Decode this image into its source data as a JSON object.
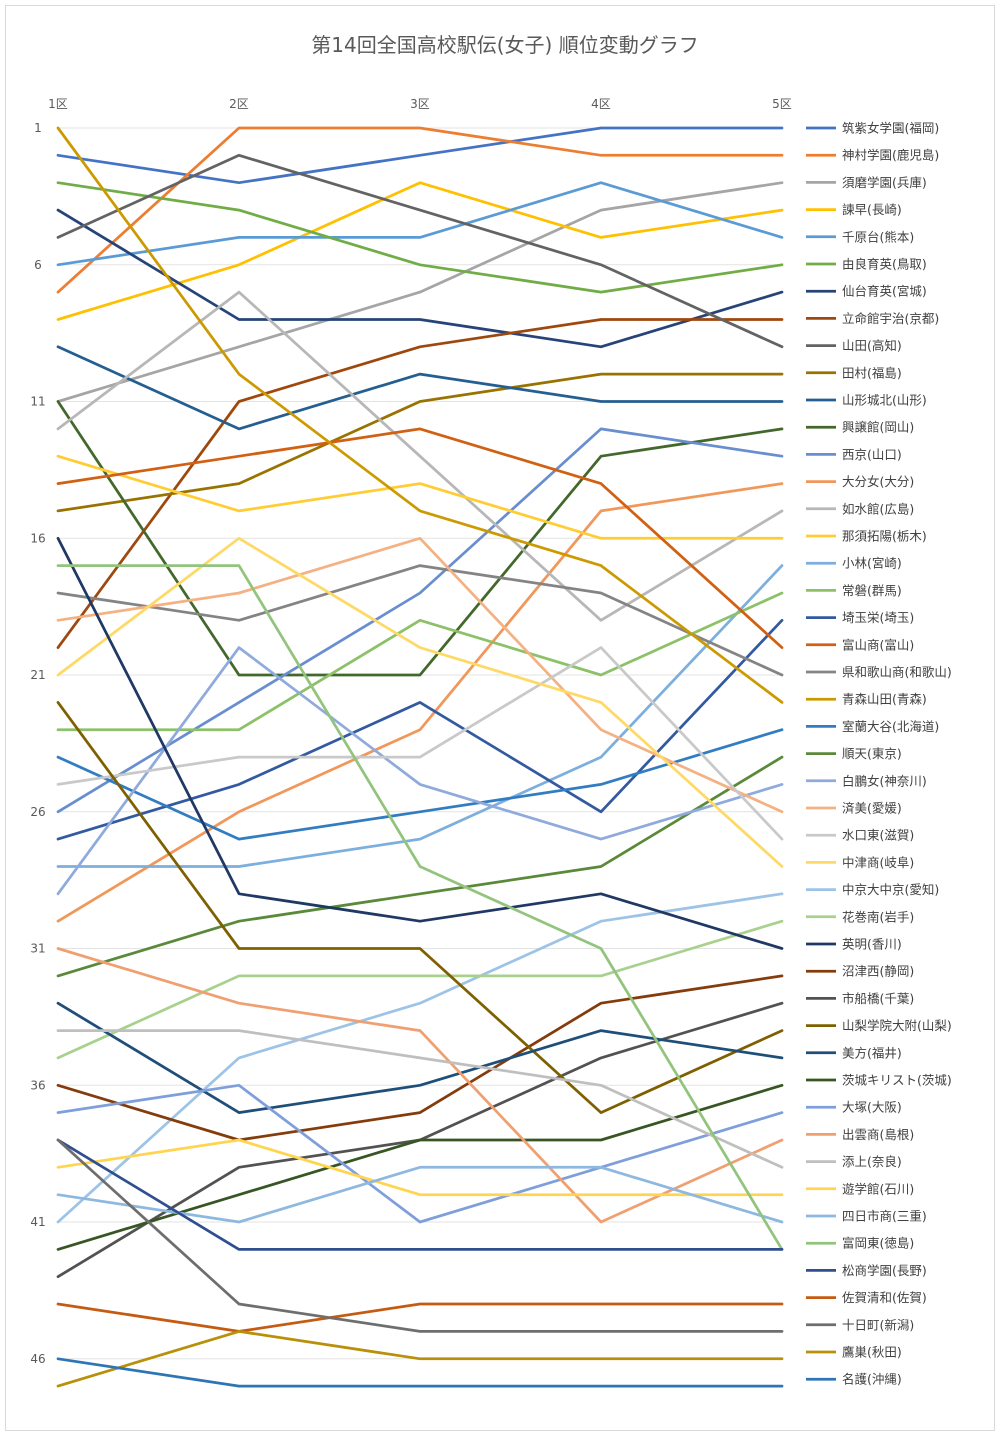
{
  "chart_data": {
    "type": "line",
    "title": "第14回全国高校駅伝(女子) 順位変動グラフ",
    "x": [
      "1区",
      "2区",
      "3区",
      "4区",
      "5区"
    ],
    "y_ticks": [
      1,
      6,
      11,
      16,
      21,
      26,
      31,
      36,
      41,
      46
    ],
    "ylim": [
      1,
      47
    ],
    "y_reversed": true,
    "grid": "horizontal",
    "legend_position": "right",
    "series": [
      {
        "name": "筑紫女学園(福岡)",
        "color": "#4472C4",
        "values": [
          2,
          3,
          2,
          1,
          1
        ]
      },
      {
        "name": "神村学園(鹿児島)",
        "color": "#ED7D31",
        "values": [
          7,
          1,
          1,
          2,
          2
        ]
      },
      {
        "name": "須磨学園(兵庫)",
        "color": "#A5A5A5",
        "values": [
          11,
          9,
          7,
          4,
          3
        ]
      },
      {
        "name": "諫早(長崎)",
        "color": "#FFC000",
        "values": [
          8,
          6,
          3,
          5,
          4
        ]
      },
      {
        "name": "千原台(熊本)",
        "color": "#5B9BD5",
        "values": [
          6,
          5,
          5,
          3,
          5
        ]
      },
      {
        "name": "由良育英(鳥取)",
        "color": "#70AD47",
        "values": [
          3,
          4,
          6,
          7,
          6
        ]
      },
      {
        "name": "仙台育英(宮城)",
        "color": "#264478",
        "values": [
          4,
          8,
          8,
          9,
          7
        ]
      },
      {
        "name": "立命館宇治(京都)",
        "color": "#9E480E",
        "values": [
          20,
          11,
          9,
          8,
          8
        ]
      },
      {
        "name": "山田(高知)",
        "color": "#636363",
        "values": [
          5,
          2,
          4,
          6,
          9
        ]
      },
      {
        "name": "田村(福島)",
        "color": "#997300",
        "values": [
          15,
          14,
          11,
          10,
          10
        ]
      },
      {
        "name": "山形城北(山形)",
        "color": "#255E91",
        "values": [
          9,
          12,
          10,
          11,
          11
        ]
      },
      {
        "name": "興譲館(岡山)",
        "color": "#43682B",
        "values": [
          11,
          21,
          21,
          13,
          12
        ]
      },
      {
        "name": "西京(山口)",
        "color": "#698ED0",
        "values": [
          26,
          22,
          18,
          12,
          13
        ]
      },
      {
        "name": "大分女(大分)",
        "color": "#F1975A",
        "values": [
          30,
          26,
          23,
          15,
          14
        ]
      },
      {
        "name": "如水館(広島)",
        "color": "#B7B7B7",
        "values": [
          12,
          7,
          13,
          19,
          15
        ]
      },
      {
        "name": "那須拓陽(栃木)",
        "color": "#FFCD33",
        "values": [
          13,
          15,
          14,
          16,
          16
        ]
      },
      {
        "name": "小林(宮崎)",
        "color": "#7CAFDD",
        "values": [
          28,
          28,
          27,
          24,
          17
        ]
      },
      {
        "name": "常磐(群馬)",
        "color": "#8CC168",
        "values": [
          23,
          23,
          19,
          21,
          18
        ]
      },
      {
        "name": "埼玉栄(埼玉)",
        "color": "#335AA1",
        "values": [
          27,
          25,
          22,
          26,
          19
        ]
      },
      {
        "name": "富山商(富山)",
        "color": "#D26012",
        "values": [
          14,
          13,
          12,
          14,
          20
        ]
      },
      {
        "name": "県和歌山商(和歌山)",
        "color": "#848484",
        "values": [
          18,
          19,
          17,
          18,
          21
        ]
      },
      {
        "name": "青森山田(青森)",
        "color": "#CC9A00",
        "values": [
          1,
          10,
          15,
          17,
          22
        ]
      },
      {
        "name": "室蘭大谷(北海道)",
        "color": "#327DC2",
        "values": [
          24,
          27,
          26,
          25,
          23
        ]
      },
      {
        "name": "順天(東京)",
        "color": "#5A8A39",
        "values": [
          32,
          30,
          29,
          28,
          24
        ]
      },
      {
        "name": "白鵬女(神奈川)",
        "color": "#8FAADC",
        "values": [
          29,
          20,
          25,
          27,
          25
        ]
      },
      {
        "name": "済美(愛媛)",
        "color": "#F4B183",
        "values": [
          19,
          18,
          16,
          23,
          26
        ]
      },
      {
        "name": "水口東(滋賀)",
        "color": "#C9C9C9",
        "values": [
          25,
          24,
          24,
          20,
          27
        ]
      },
      {
        "name": "中津商(岐阜)",
        "color": "#FFD966",
        "values": [
          21,
          16,
          20,
          22,
          28
        ]
      },
      {
        "name": "中京大中京(愛知)",
        "color": "#9DC3E6",
        "values": [
          41,
          35,
          33,
          30,
          29
        ]
      },
      {
        "name": "花巻南(岩手)",
        "color": "#A9D18E",
        "values": [
          35,
          32,
          32,
          32,
          30
        ]
      },
      {
        "name": "英明(香川)",
        "color": "#203864",
        "values": [
          16,
          29,
          30,
          29,
          31
        ]
      },
      {
        "name": "沼津西(静岡)",
        "color": "#843C0C",
        "values": [
          36,
          38,
          37,
          33,
          32
        ]
      },
      {
        "name": "市船橋(千葉)",
        "color": "#525252",
        "values": [
          43,
          39,
          38,
          35,
          33
        ]
      },
      {
        "name": "山梨学院大附(山梨)",
        "color": "#7F6000",
        "values": [
          22,
          31,
          31,
          37,
          34
        ]
      },
      {
        "name": "美方(福井)",
        "color": "#1F4E79",
        "values": [
          33,
          37,
          36,
          34,
          35
        ]
      },
      {
        "name": "茨城キリスト(茨城)",
        "color": "#375623",
        "values": [
          42,
          40,
          38,
          38,
          36
        ]
      },
      {
        "name": "大塚(大阪)",
        "color": "#7F9FDB",
        "values": [
          37,
          36,
          41,
          39,
          37
        ]
      },
      {
        "name": "出雲商(島根)",
        "color": "#F0A070",
        "values": [
          31,
          33,
          34,
          41,
          38
        ]
      },
      {
        "name": "添上(奈良)",
        "color": "#BFBFBF",
        "values": [
          34,
          34,
          35,
          36,
          39
        ]
      },
      {
        "name": "遊学館(石川)",
        "color": "#FFD54F",
        "values": [
          39,
          38,
          40,
          40,
          40
        ]
      },
      {
        "name": "四日市商(三重)",
        "color": "#8EB8E0",
        "values": [
          40,
          41,
          39,
          39,
          41
        ]
      },
      {
        "name": "富岡東(徳島)",
        "color": "#93C47D",
        "values": [
          17,
          17,
          28,
          31,
          42
        ]
      },
      {
        "name": "松商学園(長野)",
        "color": "#2F4F8F",
        "values": [
          38,
          42,
          42,
          42,
          42
        ]
      },
      {
        "name": "佐賀清和(佐賀)",
        "color": "#C55A11",
        "values": [
          44,
          45,
          44,
          44,
          44
        ]
      },
      {
        "name": "十日町(新潟)",
        "color": "#6E6E6E",
        "values": [
          38,
          44,
          45,
          45,
          45
        ]
      },
      {
        "name": "鷹巣(秋田)",
        "color": "#B8900A",
        "values": [
          47,
          45,
          46,
          46,
          46
        ]
      },
      {
        "name": "名護(沖縄)",
        "color": "#2E75B6",
        "values": [
          46,
          47,
          47,
          47,
          47
        ]
      }
    ]
  }
}
